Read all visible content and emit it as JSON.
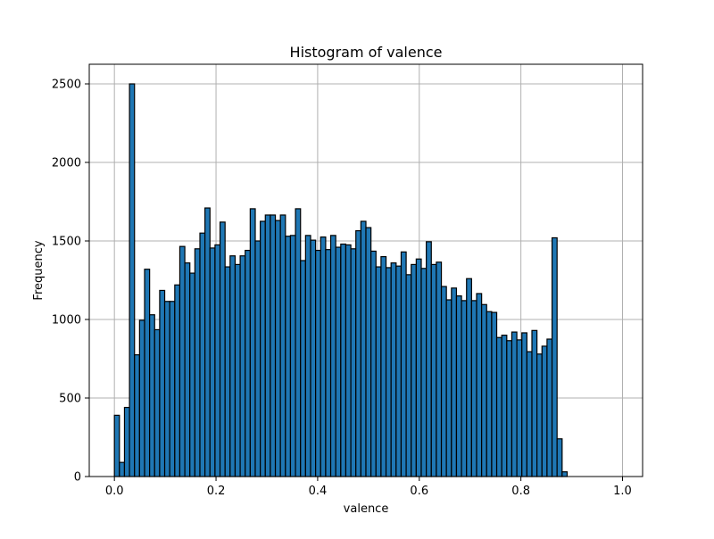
{
  "chart_data": {
    "type": "bar",
    "title": "Histogram of valence",
    "xlabel": "valence",
    "ylabel": "Frequency",
    "xlim": [
      -0.0495,
      1.0395
    ],
    "ylim": [
      0,
      2625
    ],
    "xticks": [
      0.0,
      0.2,
      0.4,
      0.6,
      0.8,
      1.0
    ],
    "xtick_labels": [
      "0.0",
      "0.2",
      "0.4",
      "0.6",
      "0.8",
      "1.0"
    ],
    "yticks": [
      0,
      500,
      1000,
      1500,
      2000,
      2500
    ],
    "ytick_labels": [
      "0",
      "500",
      "1000",
      "1500",
      "2000",
      "2500"
    ],
    "grid": true,
    "bin_start": 0.0,
    "bin_width": 0.0099,
    "values": [
      390,
      90,
      440,
      2500,
      775,
      995,
      1320,
      1030,
      935,
      1185,
      1115,
      1115,
      1220,
      1465,
      1360,
      1295,
      1450,
      1550,
      1710,
      1455,
      1475,
      1620,
      1335,
      1405,
      1350,
      1405,
      1440,
      1705,
      1500,
      1625,
      1665,
      1665,
      1630,
      1665,
      1530,
      1535,
      1705,
      1375,
      1535,
      1505,
      1440,
      1525,
      1445,
      1535,
      1460,
      1480,
      1475,
      1450,
      1565,
      1625,
      1585,
      1435,
      1335,
      1400,
      1330,
      1360,
      1340,
      1430,
      1285,
      1350,
      1385,
      1325,
      1495,
      1350,
      1365,
      1210,
      1125,
      1200,
      1150,
      1120,
      1260,
      1120,
      1165,
      1095,
      1050,
      1045,
      885,
      900,
      865,
      920,
      870,
      915,
      795,
      930,
      780,
      830,
      875,
      1520,
      240,
      30
    ]
  }
}
